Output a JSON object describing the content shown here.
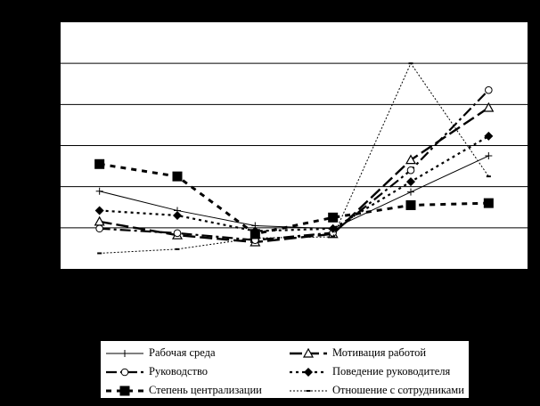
{
  "chart_data": {
    "type": "line",
    "title": "",
    "xlabel": "",
    "ylabel": "",
    "x": [
      1,
      2,
      3,
      4,
      5,
      6
    ],
    "ylim": [
      0,
      6
    ],
    "yticks": [
      0,
      1,
      2,
      3,
      4,
      5,
      6
    ],
    "grid": "horizontal",
    "legend_position": "bottom",
    "series": [
      {
        "name": "Рабочая среда",
        "values": [
          1.89,
          1.42,
          1.05,
          0.98,
          1.87,
          2.75
        ],
        "style": "solid",
        "marker": "plus"
      },
      {
        "name": "Мотивация работой",
        "values": [
          1.15,
          0.82,
          0.65,
          0.85,
          2.65,
          3.92
        ],
        "style": "longdash",
        "marker": "triangle"
      },
      {
        "name": "Руководство",
        "values": [
          0.98,
          0.87,
          0.7,
          0.88,
          2.4,
          4.35
        ],
        "style": "dashdot",
        "marker": "circle"
      },
      {
        "name": "Поведение руководителя",
        "values": [
          1.42,
          1.3,
          0.92,
          0.98,
          2.12,
          3.23
        ],
        "style": "dotted",
        "marker": "diamond"
      },
      {
        "name": "Степень централизации",
        "values": [
          2.55,
          2.25,
          0.85,
          1.25,
          1.55,
          1.6
        ],
        "style": "shortdash",
        "marker": "square"
      },
      {
        "name": "Отношение с сотрудниками",
        "values": [
          0.38,
          0.48,
          0.75,
          0.78,
          5.0,
          2.25
        ],
        "style": "fine",
        "marker": "dash"
      }
    ]
  }
}
